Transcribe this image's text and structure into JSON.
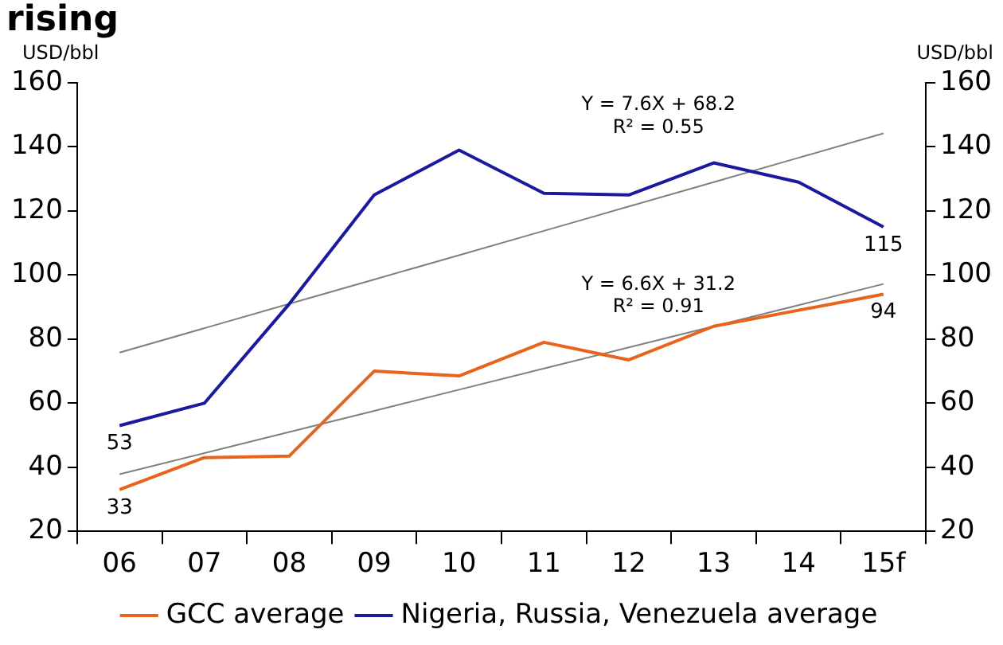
{
  "chart_data": {
    "type": "line",
    "title": "rising",
    "ylabel": "USD/bbl",
    "y2label": "USD/bbl",
    "categories": [
      "06",
      "07",
      "08",
      "09",
      "10",
      "11",
      "12",
      "13",
      "14",
      "15f"
    ],
    "series": [
      {
        "name": "GCC average",
        "color": "#e8641b",
        "values": [
          33,
          43,
          43.5,
          70,
          68.5,
          79,
          73.5,
          84,
          89,
          94
        ],
        "value_labels": [
          "33",
          null,
          null,
          null,
          null,
          null,
          null,
          null,
          null,
          "94"
        ]
      },
      {
        "name": "Nigeria, Russia, Venezuela average",
        "color": "#1a1a9c",
        "values": [
          53,
          60,
          91,
          125,
          139,
          125.5,
          125,
          135,
          129,
          115
        ],
        "value_labels": [
          "53",
          null,
          null,
          null,
          null,
          null,
          null,
          null,
          null,
          "115"
        ]
      },
      {
        "type": "line",
        "color": "#808080",
        "values": [
          75.8,
          83.4,
          91,
          98.6,
          106.2,
          113.8,
          121.4,
          129,
          136.6,
          144.2
        ]
      },
      {
        "type": "line",
        "color": "#808080",
        "values": [
          37.8,
          44.4,
          51,
          57.6,
          64.2,
          70.8,
          77.4,
          84,
          90.6,
          97.2
        ]
      }
    ],
    "ylim": [
      20,
      160
    ],
    "yticks": [
      20,
      40,
      60,
      80,
      100,
      120,
      140,
      160
    ],
    "y2lim": [
      20,
      160
    ],
    "y2ticks": [
      20,
      40,
      60,
      80,
      100,
      120,
      140,
      160
    ],
    "annotations": [
      "Y = 7.6X + 68.2",
      "R² = 0.55",
      "Y = 6.6X + 31.2",
      "R² = 0.91"
    ],
    "grid": false,
    "legend": "bottom",
    "marker": "none",
    "line_style": "solid"
  }
}
